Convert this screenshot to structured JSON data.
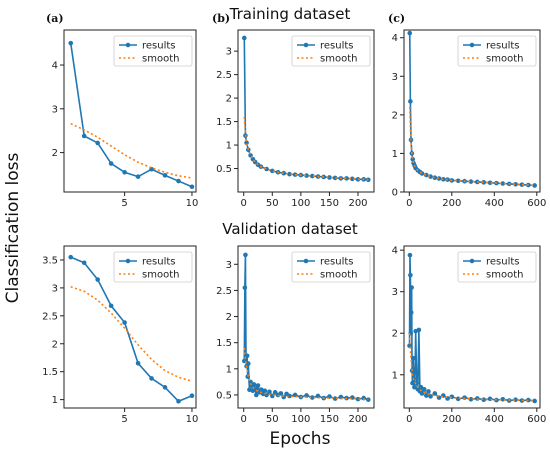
{
  "figure": {
    "row_titles": [
      "Training dataset",
      "Validation dataset"
    ],
    "ylabel": "Classification loss",
    "xlabel": "Epochs",
    "legend": {
      "results": "results",
      "smooth": "smooth"
    },
    "colors": {
      "results": "#1f77b4",
      "smooth": "#ff7f0e"
    }
  },
  "chart_data": [
    {
      "panel": "a-top",
      "tag": "(a)",
      "type": "line",
      "xlim": [
        0.5,
        10.3
      ],
      "ylim": [
        1.1,
        4.8
      ],
      "xticks": [
        5,
        10
      ],
      "yticks": [
        2,
        3,
        4
      ],
      "series": [
        {
          "name": "results",
          "x": [
            1,
            2,
            3,
            4,
            5,
            6,
            7,
            8,
            9,
            10
          ],
          "y": [
            4.5,
            2.38,
            2.22,
            1.75,
            1.55,
            1.45,
            1.62,
            1.48,
            1.35,
            1.22
          ]
        },
        {
          "name": "smooth",
          "x": [
            1,
            2,
            3,
            4,
            5,
            6,
            7,
            8,
            9,
            10
          ],
          "y": [
            2.66,
            2.52,
            2.35,
            2.15,
            1.95,
            1.78,
            1.65,
            1.55,
            1.47,
            1.42
          ]
        }
      ]
    },
    {
      "panel": "b-top",
      "tag": "(b)",
      "type": "line",
      "xlim": [
        -10,
        228
      ],
      "ylim": [
        0,
        3.45
      ],
      "xticks": [
        0,
        50,
        100,
        150,
        200
      ],
      "yticks": [
        0.5,
        1.0,
        1.5,
        2.0,
        2.5,
        3.0
      ],
      "series": [
        {
          "name": "results",
          "x": [
            1,
            3,
            5,
            8,
            12,
            16,
            20,
            25,
            30,
            40,
            50,
            60,
            70,
            80,
            90,
            100,
            110,
            120,
            130,
            140,
            150,
            160,
            170,
            180,
            190,
            200,
            210,
            218
          ],
          "y": [
            3.28,
            1.2,
            1.05,
            0.9,
            0.78,
            0.7,
            0.64,
            0.58,
            0.54,
            0.49,
            0.45,
            0.42,
            0.4,
            0.38,
            0.37,
            0.36,
            0.35,
            0.34,
            0.33,
            0.32,
            0.31,
            0.3,
            0.29,
            0.29,
            0.28,
            0.27,
            0.27,
            0.26
          ]
        },
        {
          "name": "smooth",
          "x": [
            1,
            3,
            5,
            8,
            12,
            16,
            20,
            25,
            30,
            40,
            50,
            60,
            70,
            80,
            90,
            100,
            110,
            120,
            130,
            140,
            150,
            160,
            170,
            180,
            190,
            200,
            210,
            218
          ],
          "y": [
            1.6,
            1.25,
            1.05,
            0.9,
            0.78,
            0.7,
            0.64,
            0.58,
            0.54,
            0.49,
            0.45,
            0.42,
            0.4,
            0.38,
            0.37,
            0.36,
            0.35,
            0.34,
            0.33,
            0.32,
            0.31,
            0.3,
            0.29,
            0.29,
            0.28,
            0.27,
            0.27,
            0.26
          ]
        }
      ]
    },
    {
      "panel": "c-top",
      "tag": "(c)",
      "type": "line",
      "xlim": [
        -25,
        615
      ],
      "ylim": [
        0,
        4.2
      ],
      "xticks": [
        0,
        200,
        400,
        600
      ],
      "yticks": [
        0,
        1,
        2,
        3,
        4
      ],
      "series": [
        {
          "name": "results",
          "x": [
            2,
            5,
            8,
            12,
            16,
            20,
            25,
            30,
            40,
            50,
            60,
            80,
            100,
            120,
            140,
            160,
            180,
            200,
            230,
            260,
            290,
            320,
            350,
            380,
            410,
            440,
            470,
            500,
            530,
            560,
            590
          ],
          "y": [
            4.12,
            2.35,
            1.35,
            1.0,
            0.85,
            0.75,
            0.68,
            0.62,
            0.56,
            0.52,
            0.48,
            0.44,
            0.4,
            0.37,
            0.35,
            0.33,
            0.32,
            0.3,
            0.29,
            0.28,
            0.27,
            0.26,
            0.25,
            0.24,
            0.23,
            0.22,
            0.21,
            0.2,
            0.19,
            0.18,
            0.17
          ]
        },
        {
          "name": "smooth",
          "x": [
            2,
            5,
            8,
            12,
            16,
            20,
            25,
            30,
            40,
            50,
            60,
            80,
            100,
            120,
            140,
            160,
            180,
            200,
            230,
            260,
            290,
            320,
            350,
            380,
            410,
            440,
            470,
            500,
            530,
            560,
            590
          ],
          "y": [
            2.2,
            1.7,
            1.3,
            1.0,
            0.85,
            0.75,
            0.68,
            0.62,
            0.56,
            0.52,
            0.48,
            0.44,
            0.4,
            0.37,
            0.35,
            0.33,
            0.32,
            0.3,
            0.29,
            0.28,
            0.27,
            0.26,
            0.25,
            0.24,
            0.23,
            0.22,
            0.21,
            0.2,
            0.19,
            0.18,
            0.17
          ]
        }
      ]
    },
    {
      "panel": "a-bottom",
      "tag": "",
      "type": "line",
      "xlim": [
        0.5,
        10.3
      ],
      "ylim": [
        0.85,
        3.75
      ],
      "xticks": [
        5,
        10
      ],
      "yticks": [
        1.0,
        1.5,
        2.0,
        2.5,
        3.0,
        3.5
      ],
      "series": [
        {
          "name": "results",
          "x": [
            1,
            2,
            3,
            4,
            5,
            6,
            7,
            8,
            9,
            10
          ],
          "y": [
            3.55,
            3.45,
            3.15,
            2.68,
            2.38,
            1.65,
            1.38,
            1.22,
            0.97,
            1.07
          ]
        },
        {
          "name": "smooth",
          "x": [
            1,
            2,
            3,
            4,
            5,
            6,
            7,
            8,
            9,
            10
          ],
          "y": [
            3.02,
            2.94,
            2.78,
            2.55,
            2.28,
            1.98,
            1.72,
            1.52,
            1.4,
            1.33
          ]
        }
      ]
    },
    {
      "panel": "b-bottom",
      "tag": "",
      "type": "line",
      "xlim": [
        -10,
        228
      ],
      "ylim": [
        0.25,
        3.35
      ],
      "xticks": [
        0,
        50,
        100,
        150,
        200
      ],
      "yticks": [
        0.5,
        1.0,
        1.5,
        2.0,
        2.5,
        3.0
      ],
      "series": [
        {
          "name": "results",
          "x": [
            1,
            2,
            3,
            4,
            5,
            6,
            7,
            8,
            10,
            12,
            14,
            16,
            18,
            20,
            22,
            25,
            28,
            31,
            34,
            37,
            40,
            45,
            50,
            55,
            60,
            65,
            70,
            75,
            80,
            90,
            100,
            110,
            120,
            130,
            140,
            150,
            160,
            170,
            180,
            190,
            200,
            210,
            218
          ],
          "y": [
            1.15,
            2.55,
            3.18,
            1.25,
            1.05,
            1.25,
            0.85,
            1.1,
            0.6,
            0.75,
            0.68,
            0.58,
            0.7,
            0.62,
            0.5,
            0.68,
            0.55,
            0.6,
            0.52,
            0.58,
            0.5,
            0.56,
            0.48,
            0.55,
            0.5,
            0.53,
            0.46,
            0.52,
            0.48,
            0.5,
            0.46,
            0.49,
            0.45,
            0.48,
            0.44,
            0.47,
            0.43,
            0.46,
            0.44,
            0.45,
            0.42,
            0.44,
            0.41
          ]
        },
        {
          "name": "smooth",
          "x": [
            1,
            4,
            8,
            12,
            16,
            20,
            25,
            30,
            40,
            50,
            60,
            70,
            80,
            90,
            100,
            110,
            120,
            130,
            140,
            150,
            160,
            170,
            180,
            190,
            200,
            210,
            218
          ],
          "y": [
            1.4,
            1.1,
            0.85,
            0.72,
            0.65,
            0.6,
            0.57,
            0.55,
            0.52,
            0.5,
            0.49,
            0.48,
            0.47,
            0.47,
            0.46,
            0.46,
            0.45,
            0.45,
            0.44,
            0.44,
            0.44,
            0.43,
            0.43,
            0.43,
            0.42,
            0.42,
            0.42
          ]
        }
      ]
    },
    {
      "panel": "c-bottom",
      "tag": "",
      "type": "line",
      "xlim": [
        -25,
        615
      ],
      "ylim": [
        0.2,
        4.1
      ],
      "xticks": [
        0,
        200,
        400,
        600
      ],
      "yticks": [
        1,
        2,
        3,
        4
      ],
      "series": [
        {
          "name": "results",
          "x": [
            1,
            3,
            5,
            7,
            9,
            11,
            13,
            15,
            18,
            21,
            24,
            27,
            30,
            35,
            40,
            45,
            50,
            55,
            60,
            70,
            80,
            90,
            100,
            120,
            140,
            160,
            180,
            200,
            230,
            260,
            290,
            320,
            350,
            380,
            410,
            440,
            470,
            500,
            530,
            560,
            590
          ],
          "y": [
            1.7,
            3.88,
            3.4,
            2.0,
            2.5,
            3.1,
            1.1,
            0.8,
            1.4,
            0.9,
            0.7,
            1.1,
            2.05,
            0.8,
            0.65,
            2.08,
            0.6,
            0.7,
            0.55,
            0.65,
            0.5,
            0.6,
            0.48,
            0.55,
            0.45,
            0.5,
            0.43,
            0.47,
            0.42,
            0.45,
            0.41,
            0.43,
            0.4,
            0.42,
            0.39,
            0.41,
            0.38,
            0.4,
            0.38,
            0.39,
            0.37
          ]
        },
        {
          "name": "smooth",
          "x": [
            1,
            5,
            10,
            15,
            20,
            30,
            40,
            50,
            60,
            80,
            100,
            140,
            180,
            220,
            260,
            300,
            340,
            380,
            420,
            460,
            500,
            540,
            590
          ],
          "y": [
            2.0,
            1.6,
            1.25,
            1.0,
            0.9,
            0.78,
            0.7,
            0.64,
            0.6,
            0.55,
            0.52,
            0.48,
            0.46,
            0.44,
            0.43,
            0.42,
            0.41,
            0.4,
            0.4,
            0.39,
            0.39,
            0.38,
            0.38
          ]
        }
      ]
    }
  ]
}
